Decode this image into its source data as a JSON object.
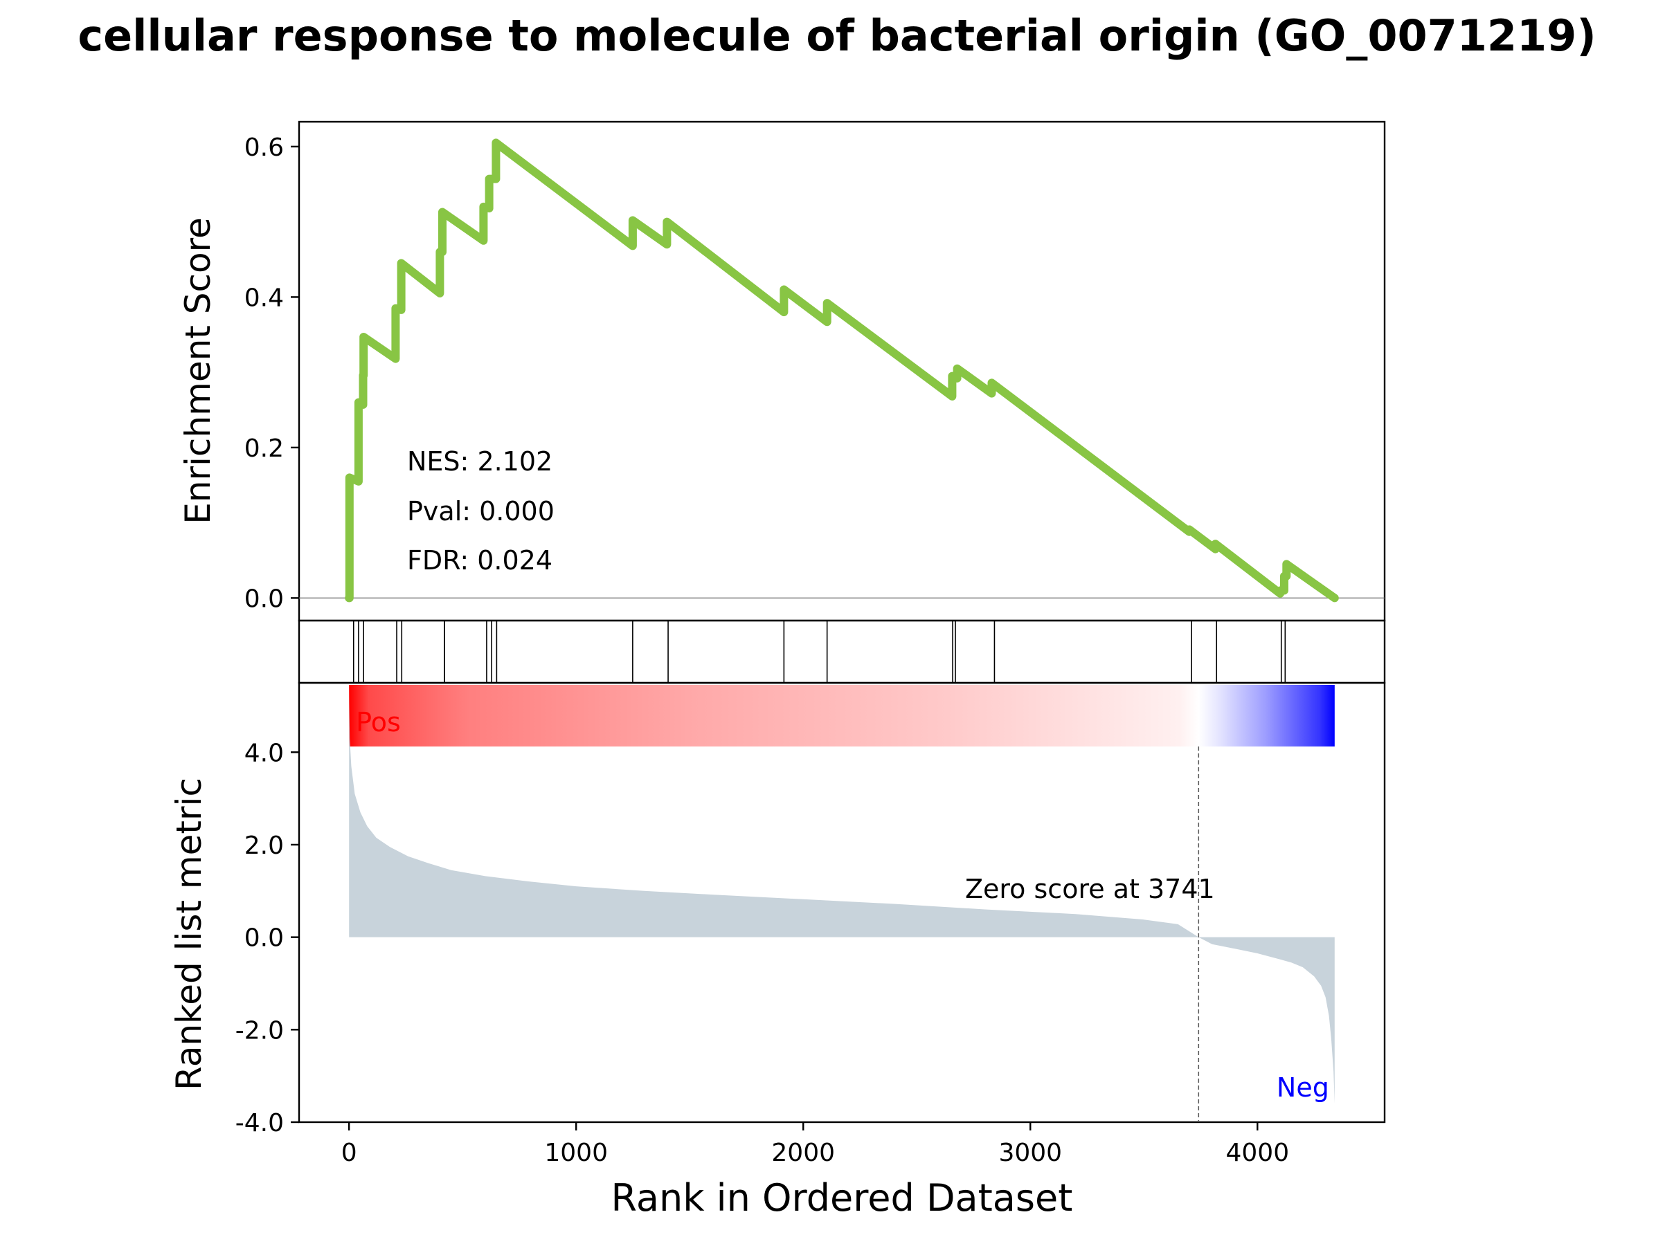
{
  "chart_data": {
    "type": "line",
    "title": "cellular response to molecule of bacterial origin (GO_0071219)",
    "enrichment": {
      "ylabel": "Enrichment Score",
      "ylim": [
        -0.03,
        0.633
      ],
      "yticks": [
        0.0,
        0.2,
        0.4,
        0.6
      ],
      "ytick_labels": [
        "0.0",
        "0.2",
        "0.4",
        "0.6"
      ],
      "color": "#88c544",
      "baseline": 0.0,
      "stats": [
        "NES: 2.102",
        "Pval: 0.000",
        "FDR: 0.024"
      ],
      "x": [
        0,
        2,
        2,
        42,
        42,
        62,
        62,
        64,
        64,
        205,
        205,
        230,
        230,
        400,
        400,
        411,
        411,
        592,
        592,
        617,
        617,
        647,
        647,
        1249,
        1249,
        1400,
        1400,
        1915,
        1915,
        2105,
        2105,
        2656,
        2656,
        2678,
        2678,
        2830,
        2830,
        3700,
        3700,
        3815,
        3815,
        4100,
        4100,
        4118,
        4118,
        4128,
        4128,
        4340
      ],
      "y": [
        0,
        0,
        0.16,
        0.155,
        0.26,
        0.257,
        0.296,
        0.296,
        0.347,
        0.318,
        0.385,
        0.383,
        0.445,
        0.405,
        0.46,
        0.46,
        0.513,
        0.475,
        0.52,
        0.518,
        0.557,
        0.557,
        0.605,
        0.468,
        0.502,
        0.47,
        0.5,
        0.38,
        0.41,
        0.367,
        0.392,
        0.268,
        0.295,
        0.292,
        0.305,
        0.272,
        0.286,
        0.088,
        0.091,
        0.065,
        0.072,
        0.006,
        0.01,
        0.01,
        0.029,
        0.029,
        0.045,
        0.0
      ]
    },
    "hits": [
      20,
      42,
      64,
      210,
      232,
      420,
      420,
      606,
      628,
      650,
      1249,
      1405,
      1915,
      2105,
      2658,
      2670,
      2842,
      3710,
      3820,
      4105,
      4122
    ],
    "ranked": {
      "ylabel": "Ranked list metric",
      "ylim": [
        -4.0,
        5.5
      ],
      "yticks": [
        -4.0,
        -2.0,
        0.0,
        2.0,
        4.0
      ],
      "ytick_labels": [
        "-4.0",
        "-2.0",
        "0.0",
        "2.0",
        "4.0"
      ],
      "fill_color": "#c8d3db",
      "zero_rank": 3741,
      "zero_label": "Zero score at 3741",
      "pos_label": "Pos",
      "neg_label": "Neg",
      "pos_color": "#ff0000",
      "neg_color": "#0000ff",
      "x": [
        0,
        3,
        10,
        25,
        50,
        80,
        120,
        180,
        260,
        350,
        450,
        600,
        800,
        1000,
        1300,
        1600,
        2000,
        2400,
        2800,
        3200,
        3500,
        3650,
        3741,
        3800,
        3900,
        4000,
        4100,
        4150,
        4200,
        4250,
        4280,
        4300,
        4315,
        4325,
        4335,
        4340
      ],
      "y": [
        5.4,
        4.3,
        3.7,
        3.1,
        2.7,
        2.4,
        2.15,
        1.95,
        1.75,
        1.6,
        1.45,
        1.32,
        1.2,
        1.1,
        1.0,
        0.92,
        0.82,
        0.72,
        0.6,
        0.5,
        0.38,
        0.28,
        0.0,
        -0.15,
        -0.25,
        -0.35,
        -0.48,
        -0.55,
        -0.65,
        -0.85,
        -1.05,
        -1.3,
        -1.7,
        -2.2,
        -2.9,
        -3.6
      ]
    },
    "xlabel": "Rank in Ordered Dataset",
    "xlim": [
      -220,
      4560
    ],
    "xticks": [
      0,
      1000,
      2000,
      3000,
      4000
    ],
    "xtick_labels": [
      "0",
      "1000",
      "2000",
      "3000",
      "4000"
    ],
    "x_max_rank": 4340
  }
}
